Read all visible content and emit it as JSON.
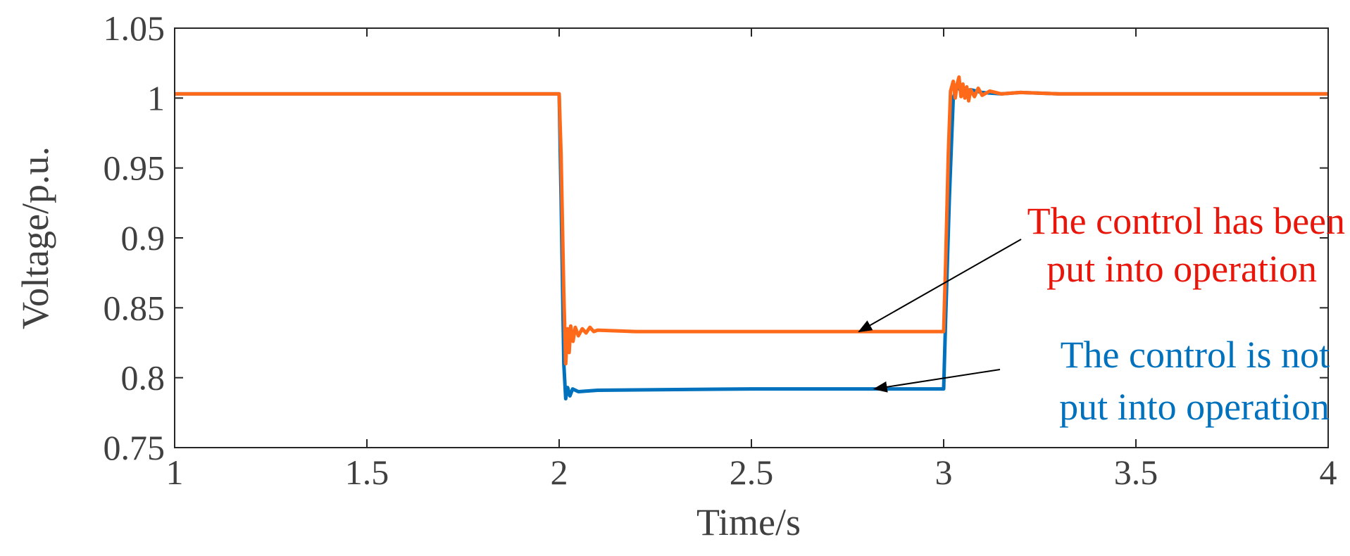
{
  "chart_data": {
    "type": "line",
    "title": "",
    "xlabel": "Time/s",
    "ylabel": "Voltage/p.u.",
    "xlim": [
      1,
      4
    ],
    "ylim": [
      0.75,
      1.05
    ],
    "xticks": [
      1,
      1.5,
      2,
      2.5,
      3,
      3.5,
      4
    ],
    "xtick_labels": [
      "1",
      "1.5",
      "2",
      "2.5",
      "3",
      "3.5",
      "4"
    ],
    "yticks": [
      0.75,
      0.8,
      0.85,
      0.9,
      0.95,
      1,
      1.05
    ],
    "ytick_labels": [
      "0.75",
      "0.8",
      "0.85",
      "0.9",
      "0.95",
      "1",
      "1.05"
    ],
    "grid": false,
    "series": [
      {
        "color": "#0072BD",
        "x": [
          1.0,
          2.0,
          2.005,
          2.012,
          2.017,
          2.022,
          2.028,
          2.035,
          2.05,
          2.1,
          2.5,
          2.99,
          3.0,
          3.005,
          3.015,
          3.025,
          3.035,
          3.05,
          3.07,
          3.1,
          3.15,
          3.2,
          3.3,
          4.0
        ],
        "y": [
          1.003,
          1.003,
          0.93,
          0.81,
          0.785,
          0.793,
          0.787,
          0.792,
          0.79,
          0.791,
          0.792,
          0.792,
          0.792,
          0.84,
          0.93,
          1.0,
          1.008,
          1.004,
          1.006,
          1.004,
          1.003,
          1.004,
          1.003,
          1.003
        ]
      },
      {
        "color": "#FF6A1A",
        "x": [
          1.0,
          2.0,
          2.005,
          2.012,
          2.017,
          2.022,
          2.026,
          2.03,
          2.036,
          2.042,
          2.05,
          2.06,
          2.07,
          2.08,
          2.09,
          2.1,
          2.2,
          2.5,
          2.99,
          3.0,
          3.005,
          3.012,
          3.018,
          3.025,
          3.03,
          3.035,
          3.04,
          3.045,
          3.05,
          3.055,
          3.06,
          3.065,
          3.07,
          3.08,
          3.09,
          3.1,
          3.12,
          3.15,
          3.2,
          3.3,
          4.0
        ],
        "y": [
          1.003,
          1.003,
          0.96,
          0.86,
          0.81,
          0.835,
          0.818,
          0.837,
          0.826,
          0.836,
          0.83,
          0.835,
          0.832,
          0.836,
          0.833,
          0.834,
          0.833,
          0.833,
          0.833,
          0.833,
          0.88,
          0.96,
          1.005,
          1.012,
          1.0,
          1.01,
          1.015,
          1.001,
          1.01,
          1.0,
          1.008,
          0.998,
          1.006,
          1.001,
          1.007,
          1.002,
          1.005,
          1.003,
          1.004,
          1.003,
          1.003
        ]
      }
    ],
    "annotations": [
      {
        "lines": [
          "The control has been",
          "put into operation"
        ],
        "color": "#E8150A",
        "arrow_to": [
          2.78,
          0.833
        ]
      },
      {
        "lines": [
          "The control is not",
          "put into operation"
        ],
        "color": "#0072BD",
        "arrow_to": [
          2.82,
          0.792
        ]
      }
    ]
  }
}
